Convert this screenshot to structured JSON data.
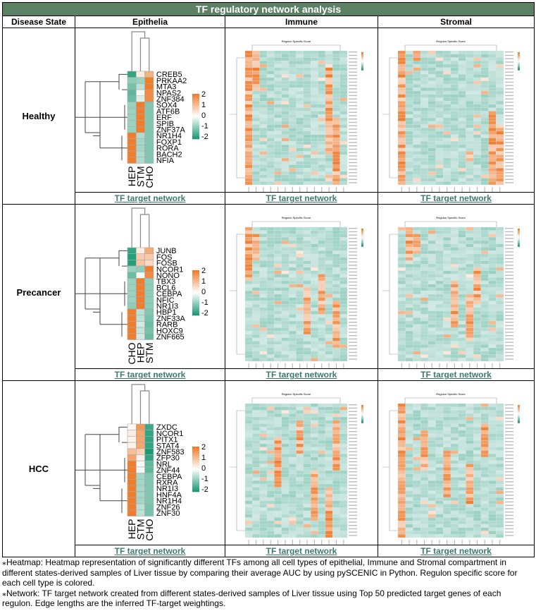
{
  "title": "TF regulatory network analysis",
  "headers": [
    "Disease State",
    "Epithelia",
    "Immune",
    "Stromal"
  ],
  "link_label": "TF target network",
  "heatmap_title": "Regulon Specific Score",
  "colors": {
    "header": "#5b8063",
    "low": "#1a9a74",
    "mid": "#ffffff",
    "high": "#f07d2c",
    "link": "#3d7a6e"
  },
  "legend": [
    "2",
    "1",
    "0",
    "-1",
    "-2"
  ],
  "rows": [
    {
      "state": "Healthy",
      "epithelia": {
        "columns": [
          "HEP",
          "STM",
          "CHO"
        ],
        "genes": [
          "CREB5",
          "PRKAA2",
          "MTA3",
          "NPAS2",
          "ZNF384",
          "SOX4",
          "ATF6B",
          "ERF",
          "SPIB",
          "ZNF37A",
          "NR1H4",
          "FOXP1",
          "RORA",
          "BACH2",
          "NFIA"
        ],
        "values": [
          [
            -1.8,
            0.3,
            1.2
          ],
          [
            -1,
            -0.9,
            2
          ],
          [
            -1.2,
            -0.6,
            2
          ],
          [
            -1.4,
            -0.1,
            1.8
          ],
          [
            -1.3,
            -0.3,
            1.8
          ],
          [
            -0.9,
            2,
            -1.1
          ],
          [
            -0.9,
            2,
            -1.1
          ],
          [
            -0.9,
            2,
            -1.1
          ],
          [
            -0.9,
            2,
            -1.1
          ],
          [
            -0.9,
            2,
            -1.1
          ],
          [
            2,
            -0.7,
            -1.1
          ],
          [
            2,
            -0.8,
            -1.1
          ],
          [
            2,
            -0.8,
            -1.1
          ],
          [
            2,
            -0.7,
            -1.1
          ],
          [
            2,
            -0.7,
            -1.1
          ]
        ]
      }
    },
    {
      "state": "Precancer",
      "epithelia": {
        "columns": [
          "CHO",
          "HEP",
          "STM"
        ],
        "genes": [
          "JUNB",
          "FOS",
          "FOSB",
          "NCOR1",
          "NONO",
          "TBX3",
          "BCL6",
          "CEBPA",
          "NFIC",
          "NR1I3",
          "HBP1",
          "ZNF33A",
          "RARB",
          "HOXC9",
          "ZNF665"
        ],
        "values": [
          [
            -1.8,
            0.3,
            1.3
          ],
          [
            -1.9,
            0.8,
            0.8
          ],
          [
            -1.9,
            0.9,
            0.6
          ],
          [
            -0.9,
            -1,
            2
          ],
          [
            -1.3,
            -0.1,
            1.8
          ],
          [
            -0.9,
            2,
            -1
          ],
          [
            -0.9,
            2,
            -1
          ],
          [
            -0.9,
            2,
            -1
          ],
          [
            -0.9,
            2,
            -1
          ],
          [
            -1,
            2,
            -1
          ],
          [
            2,
            -0.6,
            -1.1
          ],
          [
            2,
            -0.6,
            -1.2
          ],
          [
            2,
            -0.4,
            -1.3
          ],
          [
            2,
            -0.5,
            -1.2
          ],
          [
            2,
            -0.4,
            -1.3
          ]
        ]
      }
    },
    {
      "state": "HCC",
      "epithelia": {
        "columns": [
          "HEP",
          "STM",
          "CHO"
        ],
        "genes": [
          "ZXDC",
          "NCOR1",
          "PITX1",
          "STAT4",
          "ZNF583",
          "ZFP30",
          "NRL",
          "ZNF44",
          "CEBPA",
          "RXRA",
          "NR1I3",
          "HNF4A",
          "NR1H4",
          "ZNF26",
          "ZNF30"
        ],
        "values": [
          [
            0.1,
            1.6,
            -1.7
          ],
          [
            0.3,
            1.4,
            -1.8
          ],
          [
            0.2,
            1.4,
            -1.8
          ],
          [
            0.2,
            1.4,
            -1.8
          ],
          [
            1,
            0.7,
            -2
          ],
          [
            1.4,
            0.2,
            -1.8
          ],
          [
            2,
            -0.1,
            -1.4
          ],
          [
            2,
            -0.1,
            -1.4
          ],
          [
            2,
            -0.8,
            -1.1
          ],
          [
            2,
            -0.8,
            -1.1
          ],
          [
            2,
            -0.8,
            -1.1
          ],
          [
            2,
            -0.8,
            -1.1
          ],
          [
            2,
            -0.8,
            -1.1
          ],
          [
            2,
            -0.6,
            -1.2
          ],
          [
            2,
            -0.6,
            -1.2
          ]
        ]
      }
    }
  ],
  "footnotes": [
    "⁎Heatmap: Heatmap representation of significantly different TFs among all cell types of epithelial, Immune and Stromal compartment in different states-derived samples of Liver tissue by comparing their average AUC by using pySCENIC in Python. Regulon specific score for each cell type is colored.",
    "⁎Network: TF target network created from different states-derived samples of Liver tissue using Top 50 predicted target genes of each regulon. Edge lengths are the inferred TF-target weightings."
  ]
}
